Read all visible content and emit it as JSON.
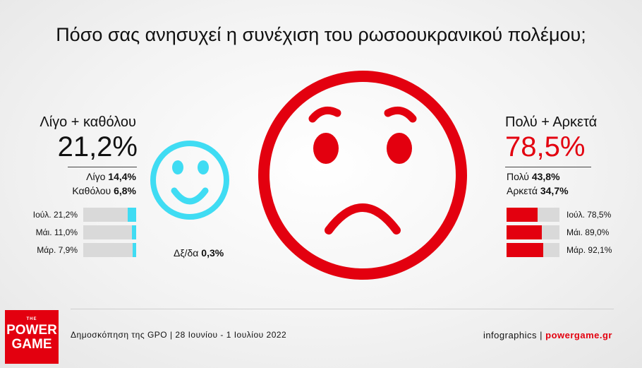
{
  "title": "Πόσο σας ανησυχεί η συνέχιση του ρωσοουκρανικού πολέμου;",
  "colors": {
    "red": "#e3000f",
    "cyan": "#3fdcf3",
    "bar_bg": "#d9d9d9"
  },
  "left": {
    "label": "Λίγο + καθόλου",
    "total": "21,2%",
    "sub": [
      {
        "label": "Λίγο",
        "value": "14,4%"
      },
      {
        "label": "Καθόλου",
        "value": "6,8%"
      }
    ]
  },
  "right": {
    "label": "Πολύ + Αρκετά",
    "total": "78,5%",
    "sub": [
      {
        "label": "Πολύ",
        "value": "43,8%"
      },
      {
        "label": "Αρκετά",
        "value": "34,7%"
      }
    ]
  },
  "dont_know": {
    "label": "Δξ/δα",
    "value": "0,3%"
  },
  "icons": {
    "happy": "smiling-face-icon",
    "sad": "worried-face-icon"
  },
  "chart_data": {
    "type": "bar",
    "categories": [
      "Ιούλ.",
      "Μάι.",
      "Μάρ."
    ],
    "series": [
      {
        "name": "Λίγο + καθόλου",
        "values": [
          21.2,
          11.0,
          7.9
        ],
        "labels": [
          "21,2%",
          "11,0%",
          "7,9%"
        ]
      },
      {
        "name": "Πολύ + Αρκετά",
        "values": [
          78.5,
          89.0,
          92.1
        ],
        "labels": [
          "78,5%",
          "89,0%",
          "92,1%"
        ]
      }
    ],
    "ylim": [
      0,
      100
    ]
  },
  "footer": {
    "source": "Δημοσκόπηση της GPO | 28 Ιουνίου - 1 Ιουλίου 2022",
    "credit_prefix": "infographics | ",
    "credit_site": "powergame.gr"
  },
  "logo": {
    "the": "THE",
    "line1": "POWER",
    "line2": "GAME"
  }
}
